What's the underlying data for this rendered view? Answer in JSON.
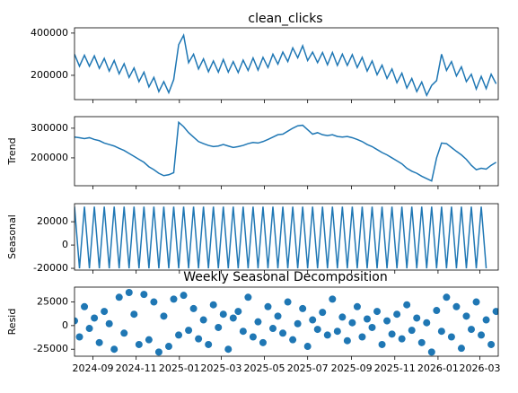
{
  "chart_data": {
    "type": "decomposition",
    "title": "clean_clicks",
    "suptitle": "Weekly Seasonal Decomposition",
    "x": [
      "2024-08-06",
      "2024-08-13",
      "2024-08-20",
      "2024-08-27",
      "2024-09-03",
      "2024-09-10",
      "2024-09-17",
      "2024-09-24",
      "2024-10-01",
      "2024-10-08",
      "2024-10-15",
      "2024-10-22",
      "2024-10-29",
      "2024-11-05",
      "2024-11-12",
      "2024-11-19",
      "2024-11-26",
      "2024-12-03",
      "2024-12-10",
      "2024-12-17",
      "2024-12-24",
      "2024-12-31",
      "2025-01-07",
      "2025-01-14",
      "2025-01-21",
      "2025-01-28",
      "2025-02-04",
      "2025-02-11",
      "2025-02-18",
      "2025-02-25",
      "2025-03-04",
      "2025-03-11",
      "2025-03-18",
      "2025-03-25",
      "2025-04-01",
      "2025-04-08",
      "2025-04-15",
      "2025-04-22",
      "2025-04-29",
      "2025-05-06",
      "2025-05-13",
      "2025-05-20",
      "2025-05-27",
      "2025-06-03",
      "2025-06-10",
      "2025-06-17",
      "2025-06-24",
      "2025-07-01",
      "2025-07-08",
      "2025-07-15",
      "2025-07-22",
      "2025-07-29",
      "2025-08-05",
      "2025-08-12",
      "2025-08-19",
      "2025-08-26",
      "2025-09-02",
      "2025-09-09",
      "2025-09-16",
      "2025-09-23",
      "2025-09-30",
      "2025-10-07",
      "2025-10-14",
      "2025-10-21",
      "2025-10-28",
      "2025-11-04",
      "2025-11-11",
      "2025-11-18",
      "2025-11-25",
      "2025-12-02",
      "2025-12-09",
      "2025-12-16",
      "2025-12-23",
      "2025-12-30",
      "2026-01-06",
      "2026-01-13",
      "2026-01-20",
      "2026-01-27",
      "2026-02-03",
      "2026-02-10",
      "2026-02-17",
      "2026-02-24",
      "2026-03-03",
      "2026-03-10",
      "2026-03-17",
      "2026-03-24"
    ],
    "xlim": [
      "2024-08-06",
      "2026-03-27"
    ],
    "xticks": [
      {
        "value": "2024-09-01",
        "label": "2024-09"
      },
      {
        "value": "2024-11-01",
        "label": "2024-11"
      },
      {
        "value": "2025-01-01",
        "label": "2025-01"
      },
      {
        "value": "2025-03-01",
        "label": "2025-03"
      },
      {
        "value": "2025-05-01",
        "label": "2025-05"
      },
      {
        "value": "2025-07-01",
        "label": "2025-07"
      },
      {
        "value": "2025-09-01",
        "label": "2025-09"
      },
      {
        "value": "2025-11-01",
        "label": "2025-11"
      },
      {
        "value": "2026-01-01",
        "label": "2026-01"
      },
      {
        "value": "2026-03-01",
        "label": "2026-03"
      }
    ],
    "panels": [
      {
        "type": "line",
        "color": "#1f77b4",
        "ylim": [
          85000,
          425000
        ],
        "yticks": [
          200000,
          400000
        ],
        "values": [
          300000,
          243000,
          295000,
          243000,
          292000,
          233000,
          280000,
          220000,
          270000,
          207000,
          255000,
          190000,
          235000,
          170000,
          215000,
          145000,
          190000,
          123000,
          170000,
          118000,
          180000,
          345000,
          390000,
          260000,
          300000,
          230000,
          278000,
          217000,
          268000,
          215000,
          275000,
          215000,
          265000,
          213000,
          272000,
          223000,
          282000,
          225000,
          285000,
          237000,
          300000,
          253000,
          310000,
          265000,
          330000,
          283000,
          340000,
          270000,
          310000,
          260000,
          308000,
          250000,
          308000,
          247000,
          300000,
          247000,
          298000,
          237000,
          285000,
          220000,
          268000,
          203000,
          248000,
          185000,
          230000,
          165000,
          210000,
          140000,
          185000,
          123000,
          168000,
          105000,
          152000,
          175000,
          300000,
          223000,
          265000,
          197000,
          240000,
          170000,
          205000,
          135000,
          195000,
          137000,
          205000,
          160000
        ]
      },
      {
        "type": "line",
        "ylabel": "Trend",
        "color": "#1f77b4",
        "ylim": [
          106000,
          339000
        ],
        "yticks": [
          200000,
          300000
        ],
        "values": [
          270000,
          268000,
          265000,
          268000,
          262000,
          258000,
          250000,
          245000,
          240000,
          232000,
          225000,
          215000,
          205000,
          195000,
          185000,
          170000,
          160000,
          148000,
          140000,
          143000,
          150000,
          320000,
          305000,
          285000,
          270000,
          255000,
          248000,
          242000,
          238000,
          240000,
          245000,
          240000,
          235000,
          238000,
          242000,
          248000,
          252000,
          250000,
          255000,
          262000,
          270000,
          278000,
          280000,
          290000,
          300000,
          308000,
          310000,
          295000,
          280000,
          285000,
          278000,
          275000,
          278000,
          272000,
          270000,
          272000,
          268000,
          262000,
          255000,
          245000,
          238000,
          228000,
          218000,
          210000,
          200000,
          190000,
          180000,
          165000,
          155000,
          148000,
          138000,
          130000,
          122000,
          200000,
          250000,
          248000,
          235000,
          222000,
          210000,
          195000,
          175000,
          160000,
          165000,
          162000,
          175000,
          185000
        ]
      },
      {
        "type": "line",
        "ylabel": "Seasonal",
        "color": "#1f77b4",
        "ylim": [
          -21500,
          35500
        ],
        "yticks": [
          -20000,
          0,
          20000
        ],
        "values": [
          33000,
          -20000,
          33000,
          -20000,
          33000,
          -20000,
          33000,
          -20000,
          33000,
          -20000,
          33000,
          -20000,
          33000,
          -20000,
          33000,
          -20000,
          33000,
          -20000,
          33000,
          -20000,
          33000,
          -20000,
          33000,
          -20000,
          33000,
          -20000,
          33000,
          -20000,
          33000,
          -20000,
          33000,
          -20000,
          33000,
          -20000,
          33000,
          -20000,
          33000,
          -20000,
          33000,
          -20000,
          33000,
          -20000,
          33000,
          -20000,
          33000,
          -20000,
          33000,
          -20000,
          33000,
          -20000,
          33000,
          -20000,
          33000,
          -20000,
          33000,
          -20000,
          33000,
          -20000,
          33000,
          -20000,
          33000,
          -20000,
          33000,
          -20000,
          33000,
          -20000,
          33000,
          -20000,
          33000,
          -20000,
          33000,
          -20000,
          33000,
          -20000,
          33000,
          -20000,
          33000,
          -20000,
          33000,
          -20000,
          33000,
          -20000,
          33000,
          -20000
        ]
      },
      {
        "type": "scatter",
        "ylabel": "Resid",
        "color": "#1f77b4",
        "ylim": [
          -32400,
          40700
        ],
        "yticks": [
          -25000,
          0,
          25000
        ],
        "values": [
          5000,
          -12000,
          20000,
          -3000,
          8000,
          -18000,
          15000,
          2000,
          -25000,
          30000,
          -8000,
          35000,
          12000,
          -20000,
          33000,
          -15000,
          25000,
          -28000,
          10000,
          -22000,
          28000,
          -10000,
          32000,
          -5000,
          18000,
          -14000,
          6000,
          -20000,
          22000,
          -2000,
          12000,
          -25000,
          8000,
          15000,
          -6000,
          30000,
          -12000,
          4000,
          -18000,
          20000,
          -3000,
          10000,
          -8000,
          25000,
          -15000,
          2000,
          18000,
          -22000,
          6000,
          -4000,
          14000,
          -10000,
          28000,
          -6000,
          9000,
          -16000,
          3000,
          20000,
          -12000,
          7000,
          -2000,
          15000,
          -20000,
          5000,
          -9000,
          12000,
          -14000,
          22000,
          -5000,
          8000,
          -18000,
          3000,
          -28000,
          16000,
          -6000,
          30000,
          -12000,
          20000,
          -24000,
          10000,
          -4000,
          25000,
          -10000,
          6000,
          -20000,
          15000
        ]
      }
    ]
  }
}
